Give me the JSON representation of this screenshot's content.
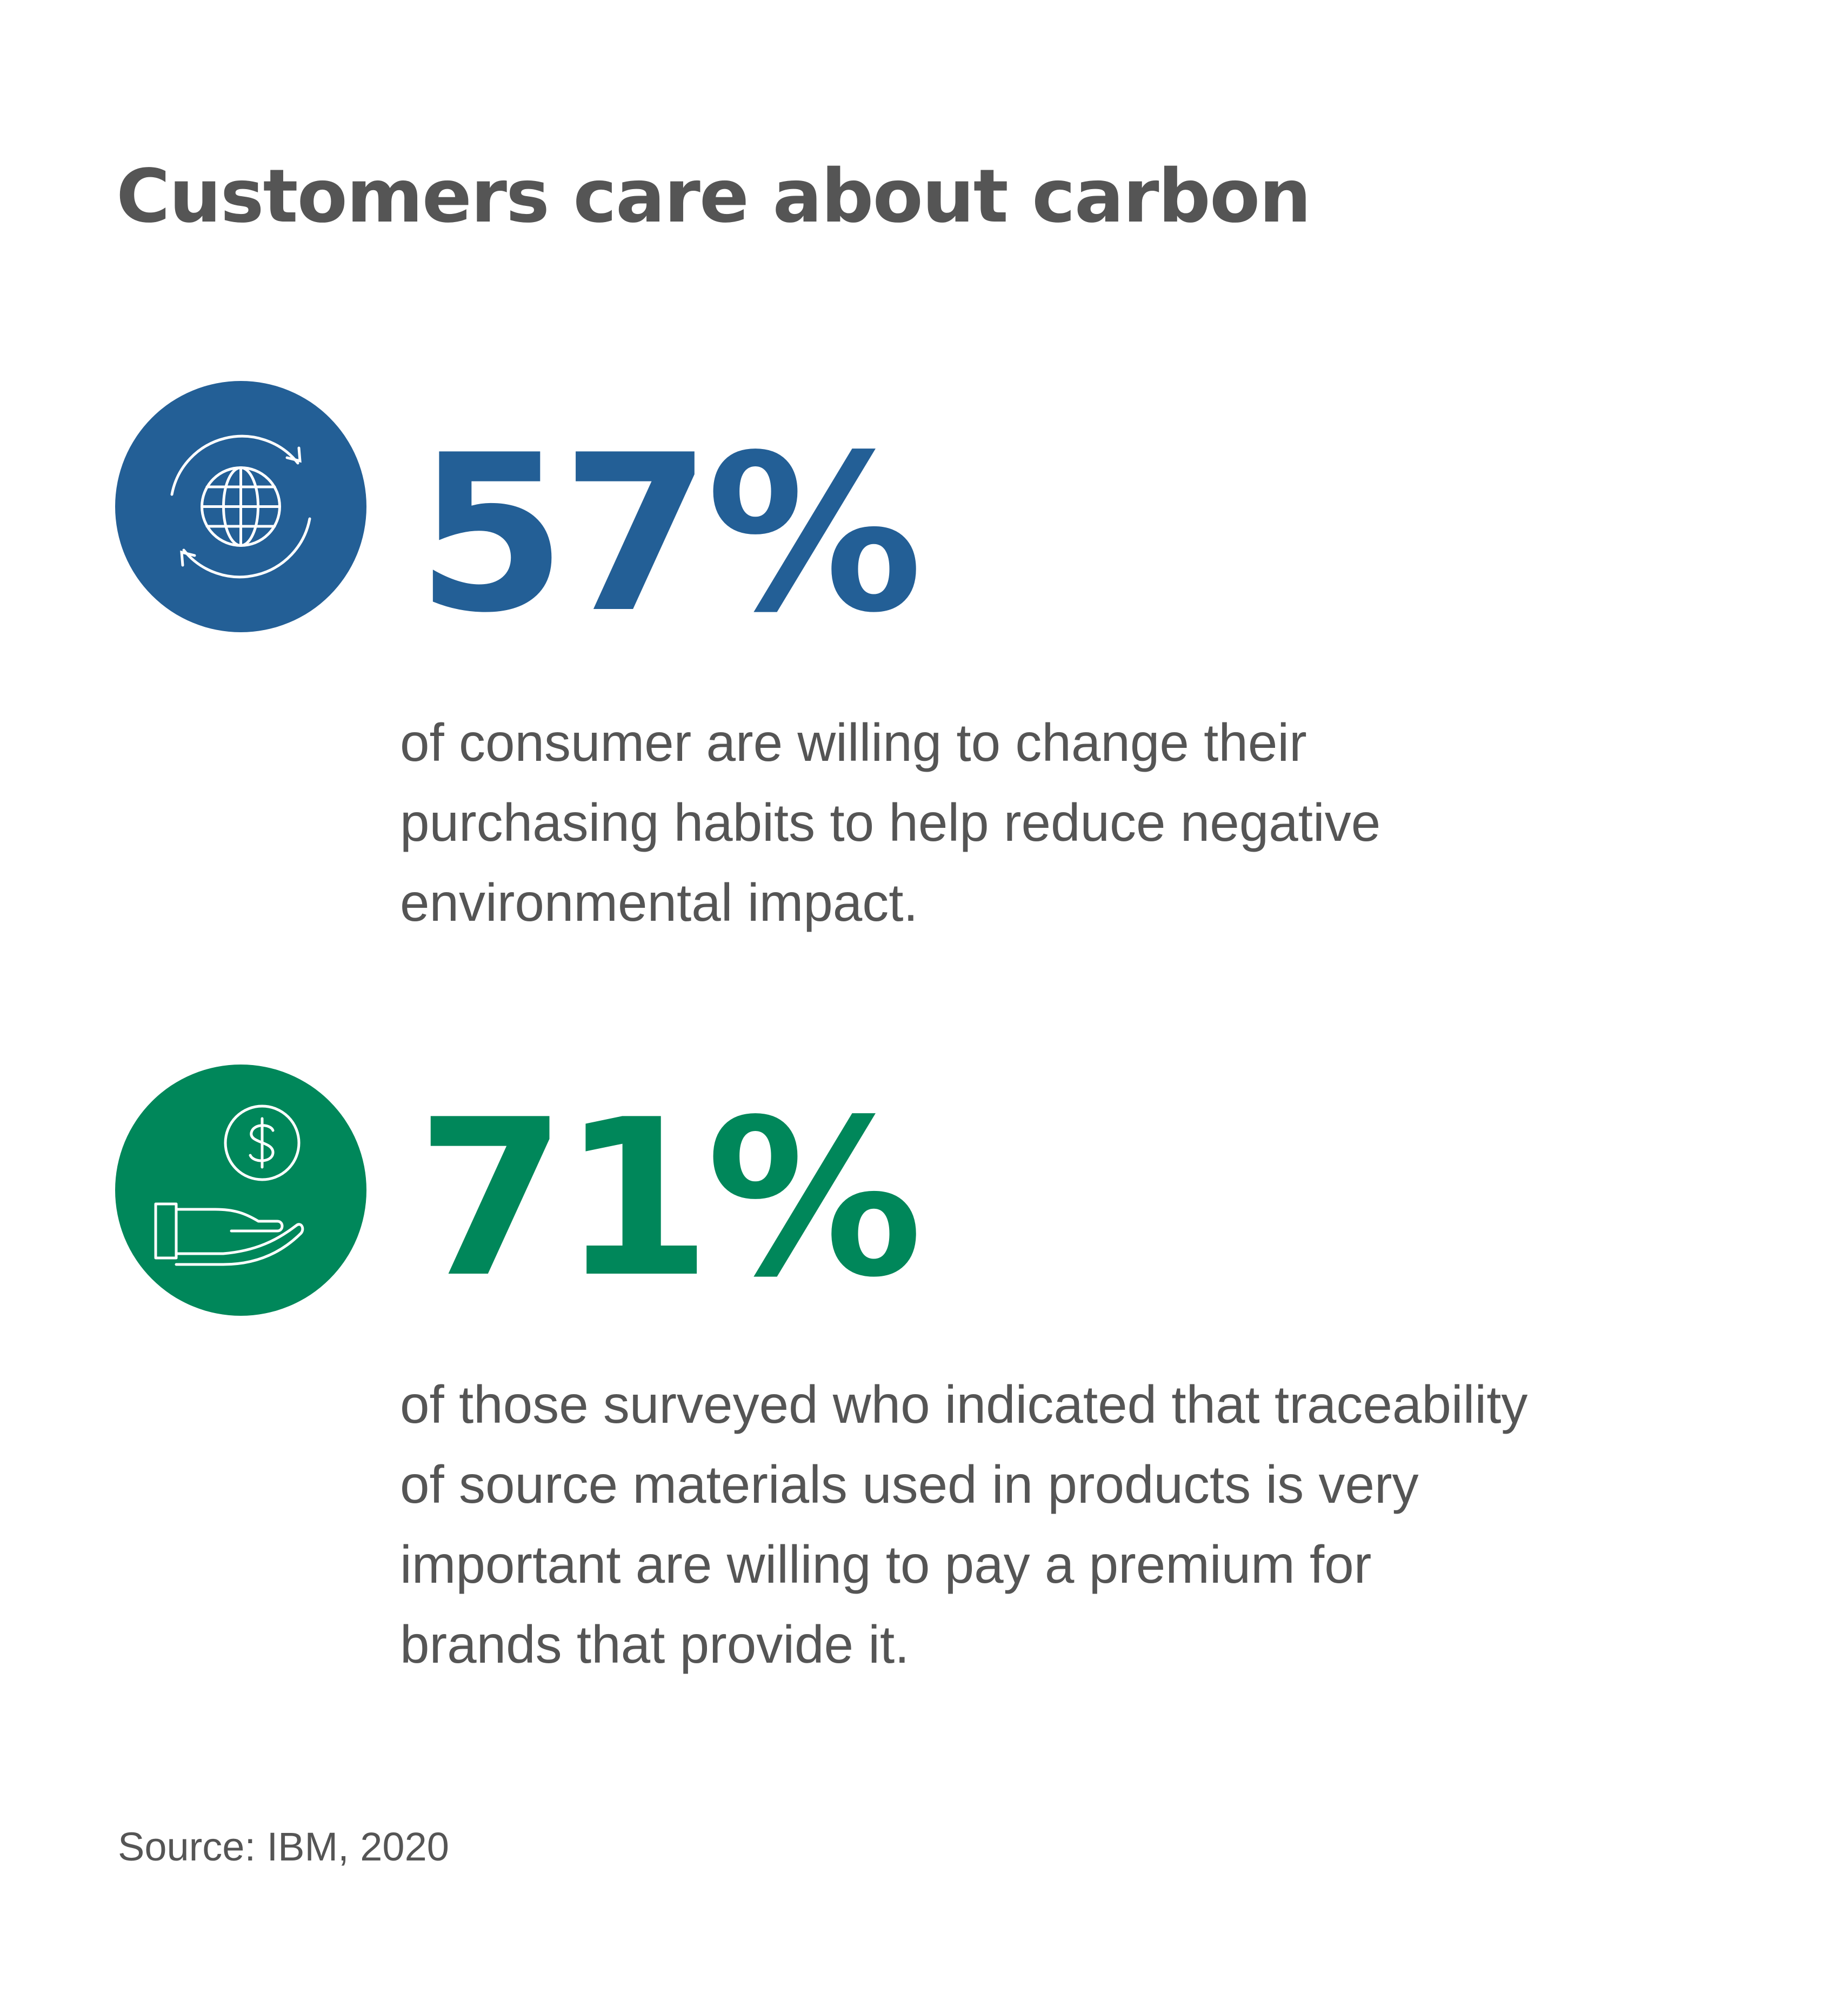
{
  "title": "Customers care about carbon",
  "stats": [
    {
      "value": "57%",
      "color": "#235F96",
      "icon": "globe-cycle-icon",
      "description_lines": [
        "of consumer are willing to change their",
        "purchasing habits to help reduce negative",
        "environmental impact."
      ]
    },
    {
      "value": "71%",
      "color": "#00875A",
      "icon": "hand-dollar-icon",
      "description_lines": [
        "of those surveyed who indicated that traceability",
        "of source materials used in products is very",
        "important are willing to pay a premium for",
        "brands that provide it."
      ]
    }
  ],
  "source": "Source: IBM, 2020"
}
